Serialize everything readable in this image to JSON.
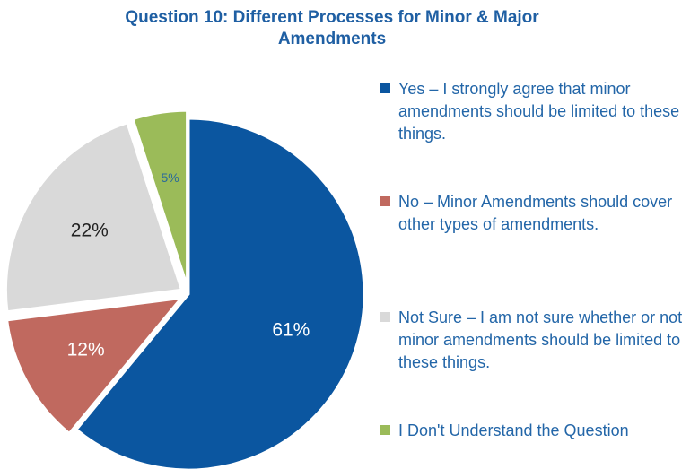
{
  "chart_data": {
    "type": "pie",
    "title": "Question 10: Different Processes for Minor & Major Amendments",
    "title_lines": [
      "Question 10: Different Processes for Minor & Major",
      "Amendments"
    ],
    "slices": [
      {
        "label": "Yes – I strongly agree that minor amendments should be limited to these things.",
        "value": 61,
        "data_label": "61%",
        "color": "#0b56a0"
      },
      {
        "label": "No – Minor Amendments should cover other types of amendments.",
        "value": 12,
        "data_label": "12%",
        "color": "#c0695f"
      },
      {
        "label": "Not Sure – I am not sure whether or not minor amendments should be limited to these things.",
        "value": 22,
        "data_label": "22%",
        "color": "#d9d9d9"
      },
      {
        "label": "I Don't Understand the Question",
        "value": 5,
        "data_label": "5%",
        "color": "#9bbb59"
      }
    ],
    "legend_position": "right",
    "data_label_colors": [
      "#ffffff",
      "#ffffff",
      "#222222",
      "#2a6a9a"
    ]
  }
}
